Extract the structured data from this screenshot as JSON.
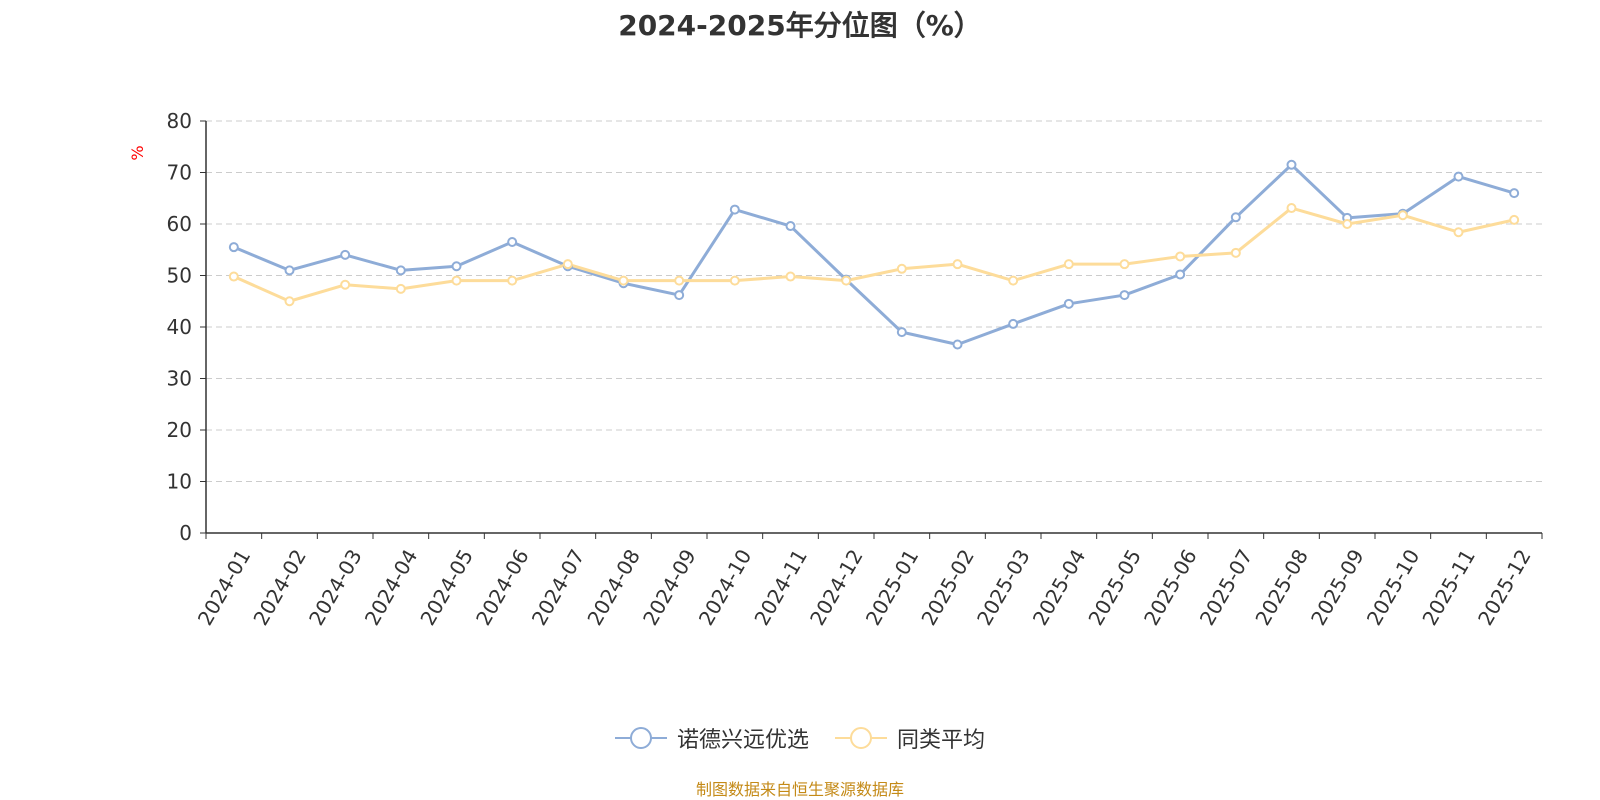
{
  "chart_data": {
    "type": "line",
    "title": "2024-2025年分位图（%）",
    "ylabel": "%",
    "ylim": [
      0,
      80
    ],
    "yticks": [
      0,
      10,
      20,
      30,
      40,
      50,
      60,
      70,
      80
    ],
    "grid": true,
    "legend_position": "bottom-center",
    "categories": [
      "2024-01",
      "2024-02",
      "2024-03",
      "2024-04",
      "2024-05",
      "2024-06",
      "2024-07",
      "2024-08",
      "2024-09",
      "2024-10",
      "2024-11",
      "2024-12",
      "2025-01",
      "2025-02",
      "2025-03",
      "2025-04",
      "2025-05",
      "2025-06",
      "2025-07",
      "2025-08",
      "2025-09",
      "2025-10",
      "2025-11",
      "2025-12"
    ],
    "series": [
      {
        "name": "诺德兴远优选",
        "color": "#8eacd7",
        "values": [
          55.5,
          51,
          54,
          51,
          51.8,
          56.5,
          51.8,
          48.5,
          46.2,
          62.8,
          59.6,
          49.2,
          39,
          36.6,
          40.6,
          44.5,
          46.2,
          50.2,
          61.3,
          71.5,
          61.2,
          62,
          69.2,
          66
        ]
      },
      {
        "name": "同类平均",
        "color": "#fddc9a",
        "values": [
          49.8,
          45,
          48.2,
          47.4,
          49,
          49,
          52.2,
          49,
          49,
          49,
          49.8,
          49,
          51.3,
          52.2,
          49,
          52.2,
          52.2,
          53.7,
          54.4,
          63.1,
          60,
          61.7,
          58.4,
          60.8
        ]
      }
    ]
  },
  "source_text": "制图数据来自恒生聚源数据库",
  "colors": {
    "axis": "#333333",
    "grid": "#cccccc",
    "ylabel": "#ff0000",
    "source": "#c48a17"
  }
}
